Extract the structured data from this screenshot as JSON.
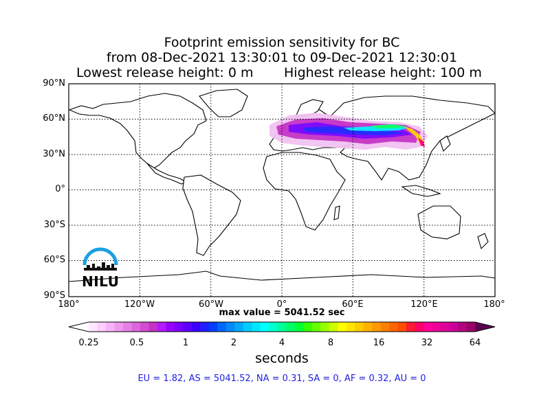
{
  "title": {
    "line1": "Footprint emission sensitivity for BC",
    "line2": "from 08-Dec-2021 13:30:01 to 09-Dec-2021 12:30:01",
    "line3_left": "Lowest release height: 0 m",
    "line3_right": "Highest release height: 100 m"
  },
  "map": {
    "lat_labels": [
      "90°N",
      "60°N",
      "30°N",
      "0°",
      "30°S",
      "60°S",
      "90°S"
    ],
    "lon_labels": [
      "180°",
      "120°W",
      "60°W",
      "0°",
      "60°E",
      "120°E",
      "180°"
    ],
    "grid": true,
    "projection": "equirectangular"
  },
  "max_value": "max value = 5041.52 sec",
  "colorbar": {
    "ticks": [
      "0.25",
      "0.5",
      "1",
      "2",
      "4",
      "8",
      "16",
      "32",
      "64"
    ],
    "label": "seconds",
    "colors": [
      "#ffe6ff",
      "#ffccff",
      "#f7b3f7",
      "#ef99ef",
      "#e680e6",
      "#dd66dd",
      "#d24dd2",
      "#c633c6",
      "#b31aff",
      "#9900ff",
      "#7a00ff",
      "#5c00ff",
      "#3d00ff",
      "#1f1fff",
      "#0040ff",
      "#0066ff",
      "#0088ff",
      "#00aaff",
      "#00ccff",
      "#00e6ff",
      "#00ffff",
      "#00ffcc",
      "#00ff99",
      "#00ff66",
      "#00ff33",
      "#33ff00",
      "#66ff00",
      "#99ff00",
      "#ccff00",
      "#ffff00",
      "#ffe600",
      "#ffcc00",
      "#ffb300",
      "#ff9900",
      "#ff8000",
      "#ff6600",
      "#ff4d00",
      "#ff1a33",
      "#ff0066",
      "#ff0099",
      "#ee0099",
      "#dd0099",
      "#cc0099",
      "#b30080",
      "#990066"
    ]
  },
  "logo": {
    "text": "NILU"
  },
  "region_totals": "EU = 1.82,  AS = 5041.52,  NA = 0.31,  SA = 0,  AF = 0.32,  AU = 0"
}
